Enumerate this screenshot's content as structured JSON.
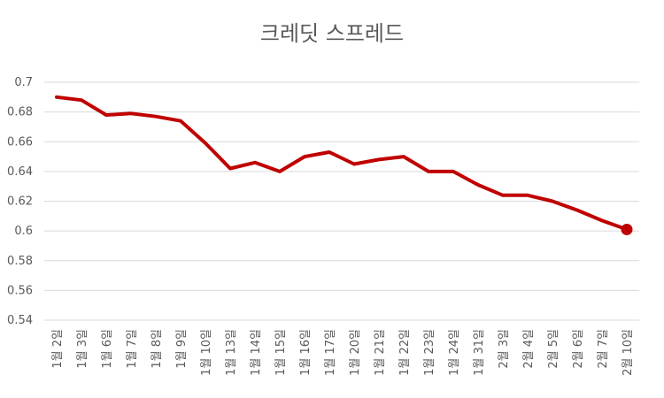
{
  "chart_data": {
    "type": "line",
    "title": "크레딧 스프레드",
    "xlabel": "",
    "ylabel": "",
    "ylim": [
      0.54,
      0.7
    ],
    "y_ticks": [
      "0.54",
      "0.56",
      "0.58",
      "0.6",
      "0.62",
      "0.64",
      "0.66",
      "0.68",
      "0.7"
    ],
    "grid": true,
    "categories": [
      "1월 2일",
      "1월 3일",
      "1월 6일",
      "1월 7일",
      "1월 8일",
      "1월 9일",
      "1월 10일",
      "1월 13일",
      "1월 14일",
      "1월 15일",
      "1월 16일",
      "1월 17일",
      "1월 20일",
      "1월 21일",
      "1월 22일",
      "1월 23일",
      "1월 24일",
      "1월 31일",
      "2월 3일",
      "2월 4일",
      "2월 5일",
      "2월 6일",
      "2월 7일",
      "2월 10일"
    ],
    "series": [
      {
        "values": [
          0.69,
          0.688,
          0.678,
          0.679,
          0.677,
          0.674,
          0.659,
          0.642,
          0.646,
          0.64,
          0.65,
          0.653,
          0.645,
          0.648,
          0.65,
          0.64,
          0.64,
          0.631,
          0.624,
          0.624,
          0.62,
          0.614,
          0.607,
          0.601
        ],
        "color": "#c00000",
        "end_marker": true
      }
    ]
  }
}
